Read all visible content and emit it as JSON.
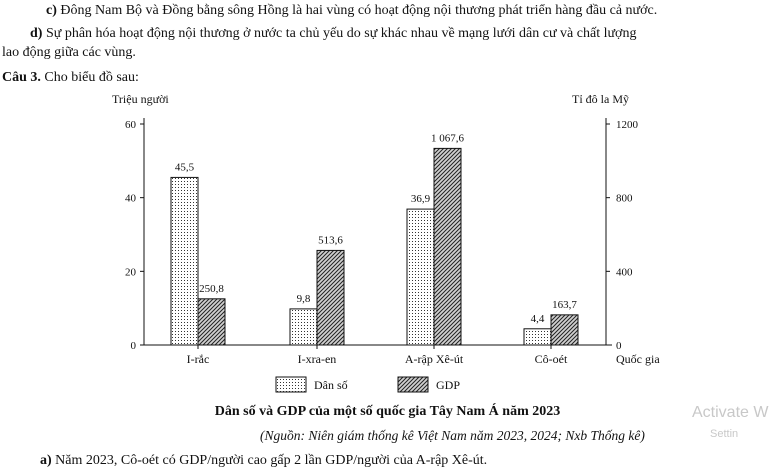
{
  "text": {
    "para_c_label": "c)",
    "para_c": " Đông Nam Bộ và Đồng bằng sông Hồng là hai vùng có hoạt động nội thương phát triển hàng đầu cả nước.",
    "para_d_label": "d)",
    "para_d_1": " Sự phân hóa hoạt động nội thương ở nước ta chủ yếu do sự khác nhau về mạng lưới dân cư và chất lượng",
    "para_d_2": "lao động giữa các vùng.",
    "question_label": "Câu 3.",
    "question_text": " Cho biểu đồ sau:",
    "source": "(Nguồn: Niên giám thống kê Việt Nam năm 2023, 2024; Nxb Thống kê)",
    "answer_a_label": "a)",
    "answer_a": " Năm 2023, Cô-oét có GDP/người cao gấp 2 lần GDP/người của A-rập Xê-út.",
    "watermark": "Activate W",
    "watermark2": "Settin"
  },
  "chart_data": {
    "type": "bar",
    "title": "Dân số và GDP của một số quốc gia Tây Nam Á năm 2023",
    "categories": [
      "I-rắc",
      "I-xra-en",
      "A-rập Xê-út",
      "Cô-oét"
    ],
    "xlabel": "Quốc gia",
    "ylabel_left": "Triệu người",
    "ylabel_right": "Tỉ đô la Mỹ",
    "ylim_left": [
      0,
      60
    ],
    "ylim_right": [
      0,
      1200
    ],
    "yticks_left": [
      "0",
      "20",
      "40",
      "60"
    ],
    "yticks_right": [
      "0",
      "400",
      "800",
      "1200"
    ],
    "series": [
      {
        "name": "Dân số",
        "axis": "left",
        "values": [
          45.5,
          9.8,
          36.9,
          4.4
        ],
        "labels": [
          "45,5",
          "9,8",
          "36,9",
          "4,4"
        ],
        "pattern": "dots"
      },
      {
        "name": "GDP",
        "axis": "right",
        "values": [
          250.8,
          513.6,
          1067.6,
          163.7
        ],
        "labels": [
          "250,8",
          "513,6",
          "1 067,6",
          "163,7"
        ],
        "pattern": "hatch"
      }
    ],
    "legend_placement": "bottom",
    "grid": false
  }
}
